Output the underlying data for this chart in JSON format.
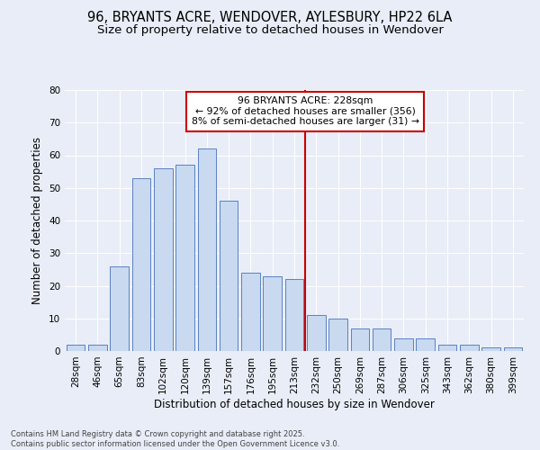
{
  "title_line1": "96, BRYANTS ACRE, WENDOVER, AYLESBURY, HP22 6LA",
  "title_line2": "Size of property relative to detached houses in Wendover",
  "xlabel": "Distribution of detached houses by size in Wendover",
  "ylabel": "Number of detached properties",
  "categories": [
    "28sqm",
    "46sqm",
    "65sqm",
    "83sqm",
    "102sqm",
    "120sqm",
    "139sqm",
    "157sqm",
    "176sqm",
    "195sqm",
    "213sqm",
    "232sqm",
    "250sqm",
    "269sqm",
    "287sqm",
    "306sqm",
    "325sqm",
    "343sqm",
    "362sqm",
    "380sqm",
    "399sqm"
  ],
  "values": [
    2,
    2,
    26,
    53,
    56,
    57,
    62,
    46,
    24,
    23,
    22,
    11,
    10,
    7,
    7,
    4,
    4,
    2,
    2,
    1,
    1
  ],
  "bar_color": "#c8d9f0",
  "bar_edge_color": "#5b82c0",
  "vline_color": "#cc0000",
  "annotation_box_text": "96 BRYANTS ACRE: 228sqm\n← 92% of detached houses are smaller (356)\n8% of semi-detached houses are larger (31) →",
  "ylim": [
    0,
    80
  ],
  "yticks": [
    0,
    10,
    20,
    30,
    40,
    50,
    60,
    70,
    80
  ],
  "bg_color": "#e8edf7",
  "grid_color": "#ffffff",
  "footer_text": "Contains HM Land Registry data © Crown copyright and database right 2025.\nContains public sector information licensed under the Open Government Licence v3.0.",
  "title_fontsize": 10.5,
  "subtitle_fontsize": 9.5,
  "tick_fontsize": 7.5,
  "label_fontsize": 8.5
}
